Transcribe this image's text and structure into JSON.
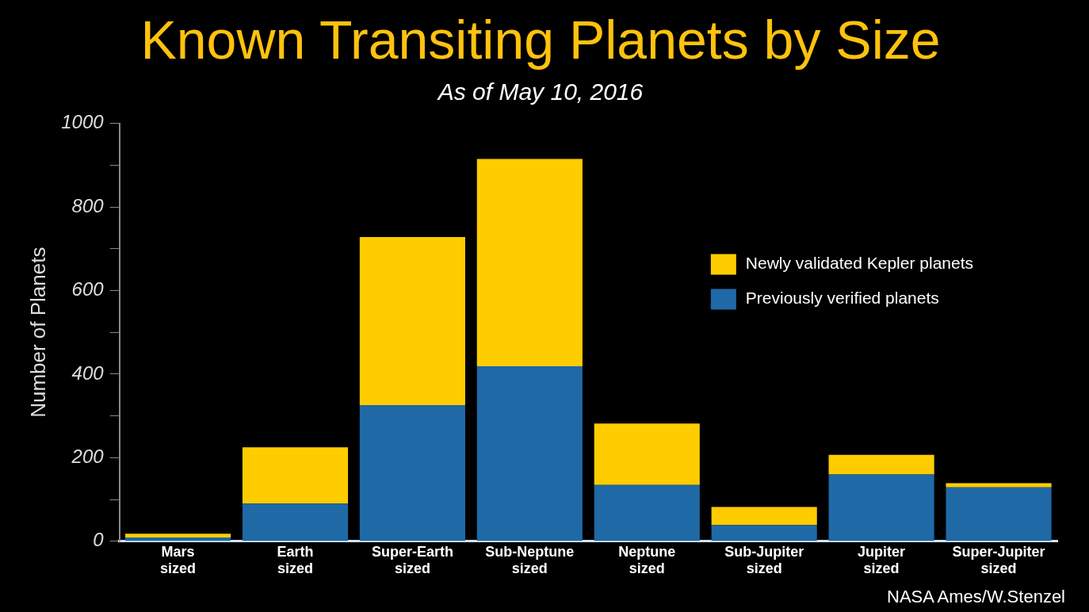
{
  "chart_data": {
    "type": "bar",
    "title": "Known Transiting Planets by Size",
    "subtitle": "As of May 10, 2016",
    "ylabel": "Number of Planets",
    "categories": [
      "Mars sized",
      "Earth sized",
      "Super-Earth sized",
      "Sub-Neptune sized",
      "Neptune sized",
      "Sub-Jupiter sized",
      "Jupiter sized",
      "Super-Jupiter sized"
    ],
    "series": [
      {
        "name": "Previously verified planets",
        "color": "#1f69a6",
        "values": [
          9,
          90,
          326,
          419,
          135,
          39,
          160,
          129
        ]
      },
      {
        "name": "Newly validated Kepler planets",
        "color": "#ffcc00",
        "values": [
          9,
          135,
          402,
          496,
          147,
          43,
          47,
          10
        ]
      }
    ],
    "stacked": true,
    "ylim": [
      0,
      1000
    ],
    "yticks": [
      0,
      {
        "value": 100,
        "label": null
      },
      200,
      {
        "value": 300,
        "label": null
      },
      400,
      {
        "value": 500,
        "label": null
      },
      600,
      {
        "value": 700,
        "label": null
      },
      800,
      {
        "value": 900,
        "label": null
      },
      1000
    ],
    "grid": false,
    "legend": "top right",
    "annotations": [
      "NASA Ames/W.Stenzel"
    ]
  }
}
